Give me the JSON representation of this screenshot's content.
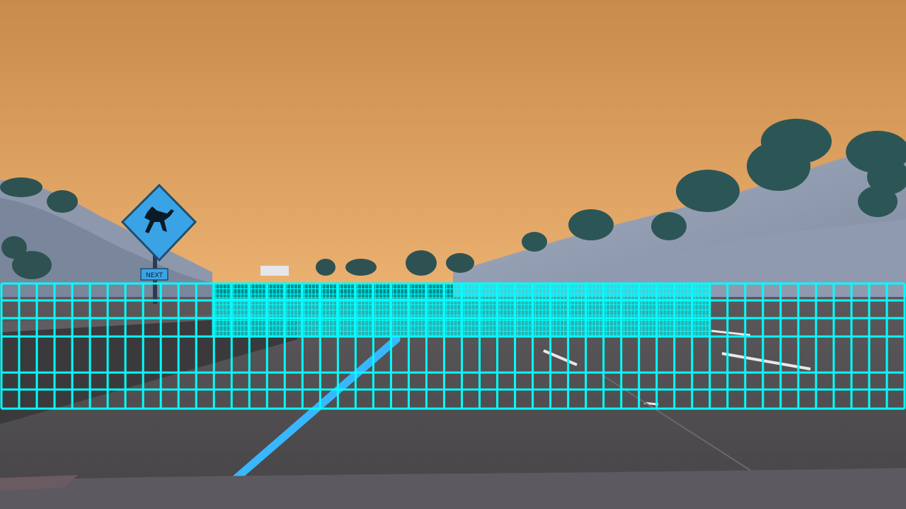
{
  "scene": {
    "description_free": true,
    "colors": {
      "sky_top": "#c98a4a",
      "sky_bottom": "#e8ad6e",
      "road": "#4f4d4e",
      "road_dark": "#3e3c3e",
      "hill": "#9aa4b8",
      "hill_shadow": "#6d7890",
      "tree": "#2f5a5a",
      "sign": "#3aa3e6",
      "lane_line": "#38b7ff",
      "grid": "#00ffff",
      "hood": "#5c5a60"
    },
    "sign_text": "NEXT",
    "grid": {
      "coarse_columns": 51,
      "coarse_rows": 7,
      "fine_columns": 140,
      "fine_rows": 10
    }
  }
}
